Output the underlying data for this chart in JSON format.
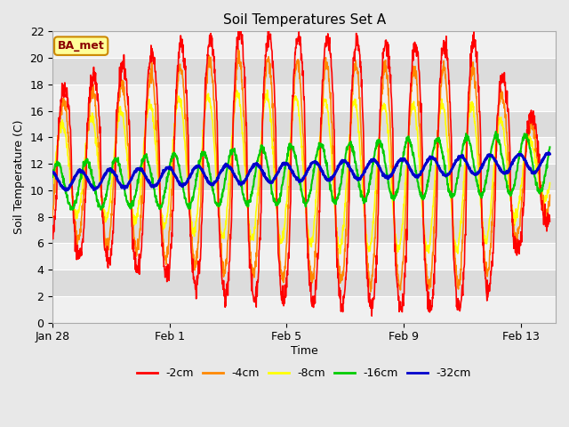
{
  "title": "Soil Temperatures Set A",
  "xlabel": "Time",
  "ylabel": "Soil Temperature (C)",
  "ylim": [
    0,
    22
  ],
  "yticks": [
    0,
    2,
    4,
    6,
    8,
    10,
    12,
    14,
    16,
    18,
    20,
    22
  ],
  "xlim_start": 27,
  "xlim_end": 44.2,
  "x_tick_labels": [
    "Jan 28",
    "Feb 1",
    "Feb 5",
    "Feb 9",
    "Feb 13"
  ],
  "x_tick_days": [
    27,
    31,
    35,
    39,
    43
  ],
  "fig_bg_color": "#e8e8e8",
  "plot_bg_light": "#f0f0f0",
  "plot_bg_dark": "#dcdcdc",
  "legend_label": "BA_met",
  "legend_bg": "#ffff99",
  "legend_border": "#cc8800",
  "series_colors": [
    "#ff0000",
    "#ff8800",
    "#ffff00",
    "#00cc00",
    "#0000cc"
  ],
  "series_labels": [
    "-2cm",
    "-4cm",
    "-8cm",
    "-16cm",
    "-32cm"
  ],
  "series_linewidths": [
    1.2,
    1.2,
    1.2,
    1.5,
    2.0
  ],
  "n_days": 17,
  "pts_per_day": 96,
  "seed": 42,
  "mean_shallow": 11.5,
  "amp_2cm_base": 8.5,
  "amp_4cm_base": 7.0,
  "amp_8cm_base": 4.5,
  "amp_16cm_base": 1.8,
  "amp_32cm_base": 0.7,
  "phase_4cm": 0.2,
  "phase_8cm": 0.5,
  "phase_16cm": 1.5,
  "phase_32cm": 2.8
}
